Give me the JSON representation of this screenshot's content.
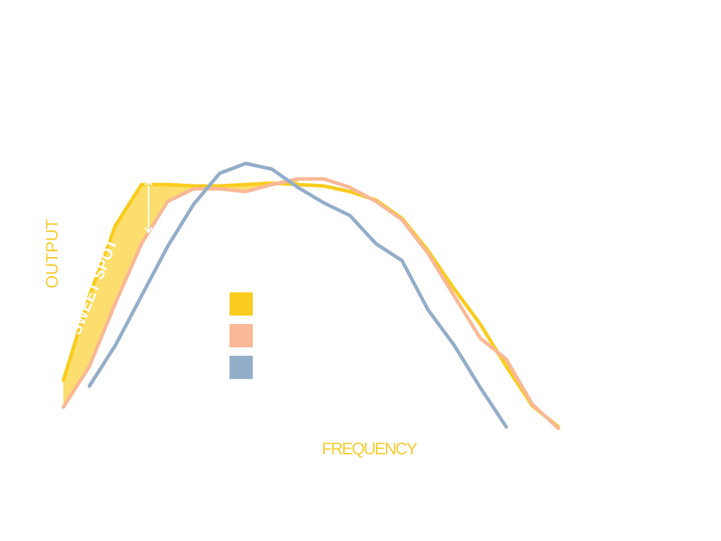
{
  "chart_data": {
    "type": "line",
    "x_label": "FREQUENCY",
    "y_label": "OUTPUT",
    "annotation": "SWEET SPOT",
    "x": [
      0,
      5,
      10,
      15,
      20,
      25,
      30,
      35,
      40,
      45,
      50,
      55,
      60,
      65,
      70,
      75,
      80,
      85,
      90,
      95,
      100
    ],
    "xlim": [
      0,
      100
    ],
    "ylim": [
      0,
      100
    ],
    "series": [
      {
        "color": "#f9cc1e",
        "values": [
          17.5,
          47.5,
          72.5,
          87,
          87,
          86.5,
          86.5,
          87,
          87.5,
          87,
          86.5,
          84.5,
          81.5,
          75,
          63.5,
          50,
          37.5,
          22.5,
          8.5,
          1,
          null
        ]
      },
      {
        "color": "#f9b896",
        "values": [
          8,
          22.5,
          45,
          66,
          81,
          85.5,
          85.5,
          84.5,
          87,
          89,
          89,
          86,
          81,
          74.5,
          62.5,
          47.5,
          32.5,
          25,
          9,
          0.5,
          null
        ]
      },
      {
        "color": "#94adc9",
        "values": [
          null,
          15.5,
          30,
          47.5,
          65,
          80,
          91,
          94.5,
          92.5,
          86,
          80.5,
          76,
          66,
          60,
          42.5,
          30,
          15,
          1,
          null,
          null,
          null
        ]
      }
    ]
  }
}
